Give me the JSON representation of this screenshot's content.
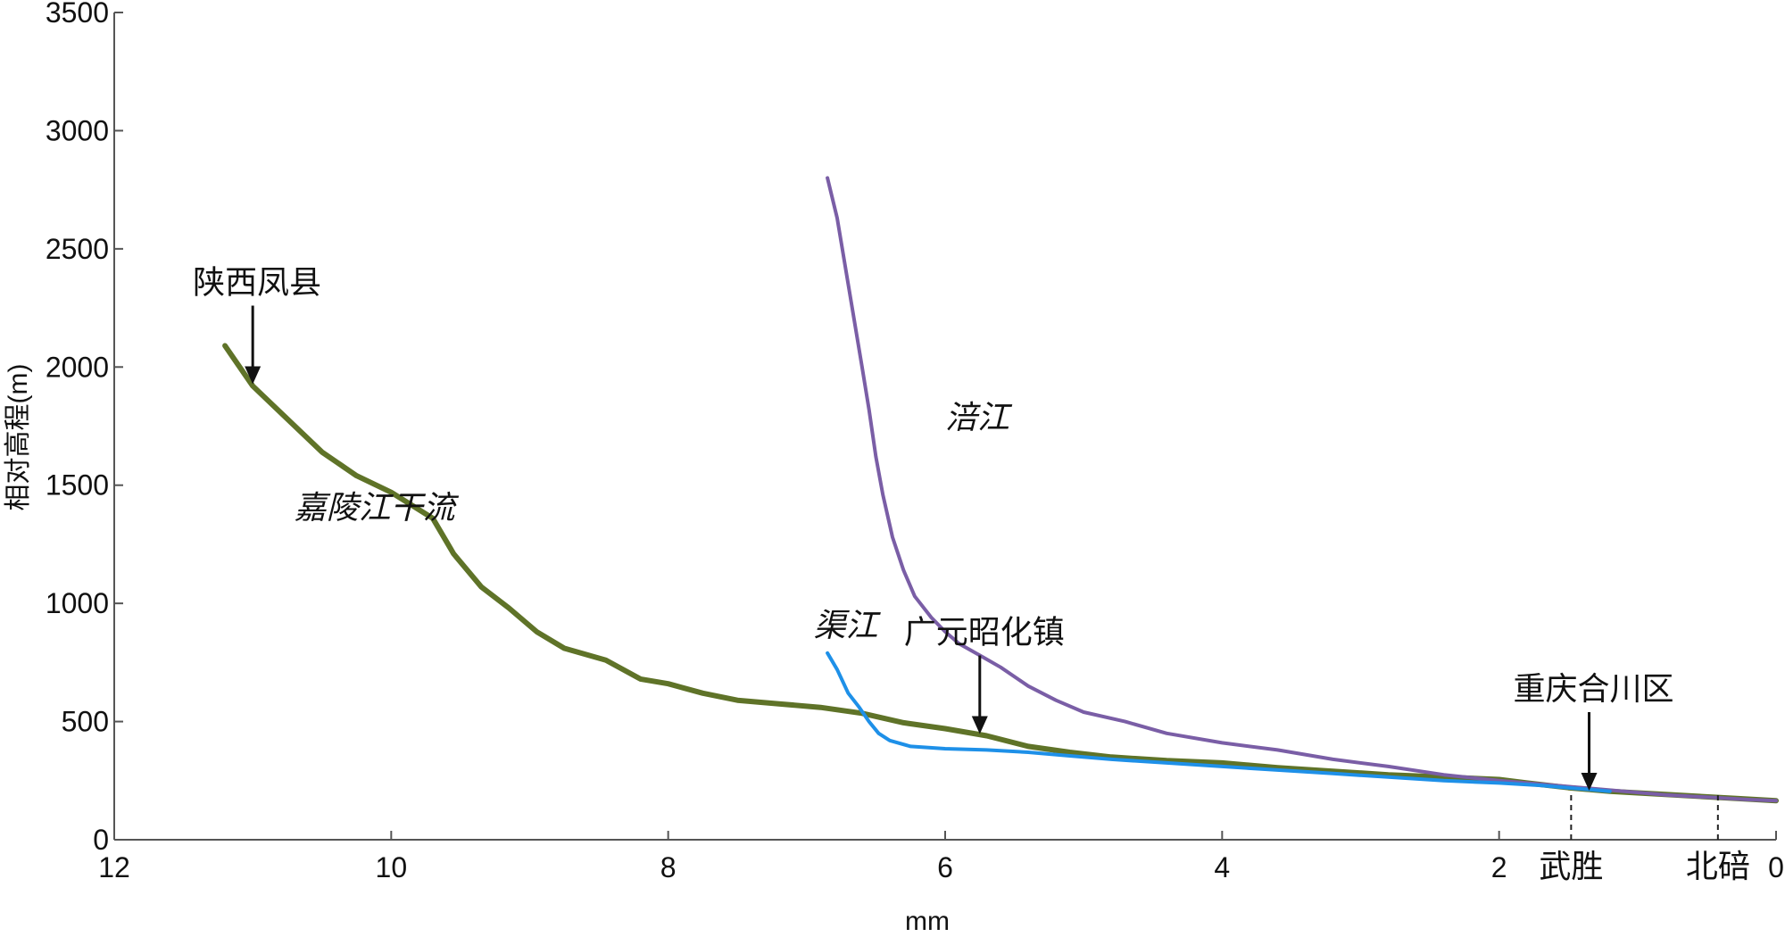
{
  "chart_data": {
    "type": "line",
    "title": "",
    "xlabel": "mm",
    "ylabel": "相对高程(m)",
    "xlim": [
      0,
      12
    ],
    "x_reversed": true,
    "ylim": [
      0,
      3500
    ],
    "grid": false,
    "x_ticks": [
      "12",
      "10",
      "8",
      "6",
      "4",
      "2",
      "0"
    ],
    "x_tick_values": [
      12,
      10,
      8,
      6,
      4,
      2,
      0
    ],
    "y_ticks": [
      "0",
      "500",
      "1000",
      "1500",
      "2000",
      "2500",
      "3000",
      "3500"
    ],
    "y_tick_values": [
      0,
      500,
      1000,
      1500,
      2000,
      2500,
      3000,
      3500
    ],
    "series": [
      {
        "name": "嘉陵江干流",
        "color": "#5f7328",
        "width": 6,
        "x": [
          11.2,
          11.0,
          10.75,
          10.5,
          10.25,
          10.0,
          9.7,
          9.55,
          9.35,
          9.15,
          8.95,
          8.75,
          8.45,
          8.2,
          8.0,
          7.75,
          7.5,
          7.2,
          6.9,
          6.6,
          6.3,
          6.0,
          5.7,
          5.4,
          5.1,
          4.8,
          4.4,
          4.0,
          3.6,
          3.2,
          2.8,
          2.4,
          2.0,
          1.8,
          1.5,
          1.2,
          0.9,
          0.6,
          0.3,
          0.0
        ],
        "values": [
          2090,
          1920,
          1780,
          1640,
          1540,
          1470,
          1360,
          1210,
          1070,
          980,
          880,
          810,
          760,
          680,
          660,
          620,
          590,
          575,
          560,
          535,
          495,
          470,
          440,
          395,
          370,
          350,
          335,
          325,
          305,
          290,
          275,
          265,
          255,
          240,
          220,
          205,
          195,
          185,
          175,
          165
        ]
      },
      {
        "name": "涪江",
        "color": "#7a5ea6",
        "width": 4,
        "x": [
          6.85,
          6.78,
          6.7,
          6.6,
          6.55,
          6.5,
          6.45,
          6.38,
          6.3,
          6.22,
          6.1,
          6.0,
          5.9,
          5.75,
          5.6,
          5.4,
          5.2,
          5.0,
          4.7,
          4.4,
          4.0,
          3.6,
          3.2,
          2.8,
          2.4,
          2.0,
          1.7,
          1.4,
          1.1,
          0.8,
          0.5,
          0.2,
          0.0
        ],
        "values": [
          2800,
          2630,
          2350,
          2000,
          1820,
          1620,
          1460,
          1280,
          1140,
          1030,
          940,
          880,
          830,
          780,
          730,
          650,
          590,
          540,
          500,
          450,
          410,
          380,
          340,
          310,
          275,
          250,
          235,
          220,
          205,
          190,
          180,
          170,
          165
        ]
      },
      {
        "name": "渠江",
        "color": "#1e90e8",
        "width": 4,
        "x": [
          6.85,
          6.78,
          6.7,
          6.62,
          6.55,
          6.48,
          6.4,
          6.25,
          6.0,
          5.7,
          5.4,
          5.1,
          4.8,
          4.4,
          4.0,
          3.6,
          3.2,
          2.8,
          2.4,
          2.0,
          1.7,
          1.4,
          1.2
        ],
        "values": [
          790,
          720,
          620,
          560,
          500,
          450,
          420,
          395,
          385,
          380,
          370,
          355,
          340,
          325,
          310,
          295,
          280,
          265,
          250,
          240,
          230,
          215,
          205
        ]
      }
    ],
    "annotations": [
      {
        "text": "陕西凤县",
        "x": 11.0,
        "y": 1920,
        "arrow": true
      },
      {
        "text": "广元昭化镇",
        "x": 5.75,
        "y": 440,
        "arrow": true
      },
      {
        "text": "重庆合川区",
        "x": 1.35,
        "y": 200,
        "arrow": true
      },
      {
        "text": "嘉陵江干流",
        "x": 10.7,
        "y": 1360,
        "italic": true
      },
      {
        "text": "涪江",
        "x": 6.0,
        "y": 1740,
        "italic": true
      },
      {
        "text": "渠江",
        "x": 6.95,
        "y": 860,
        "italic": true
      }
    ],
    "markers": [
      {
        "text": "武胜",
        "x": 1.48
      },
      {
        "text": "北碚",
        "x": 0.42
      }
    ]
  }
}
